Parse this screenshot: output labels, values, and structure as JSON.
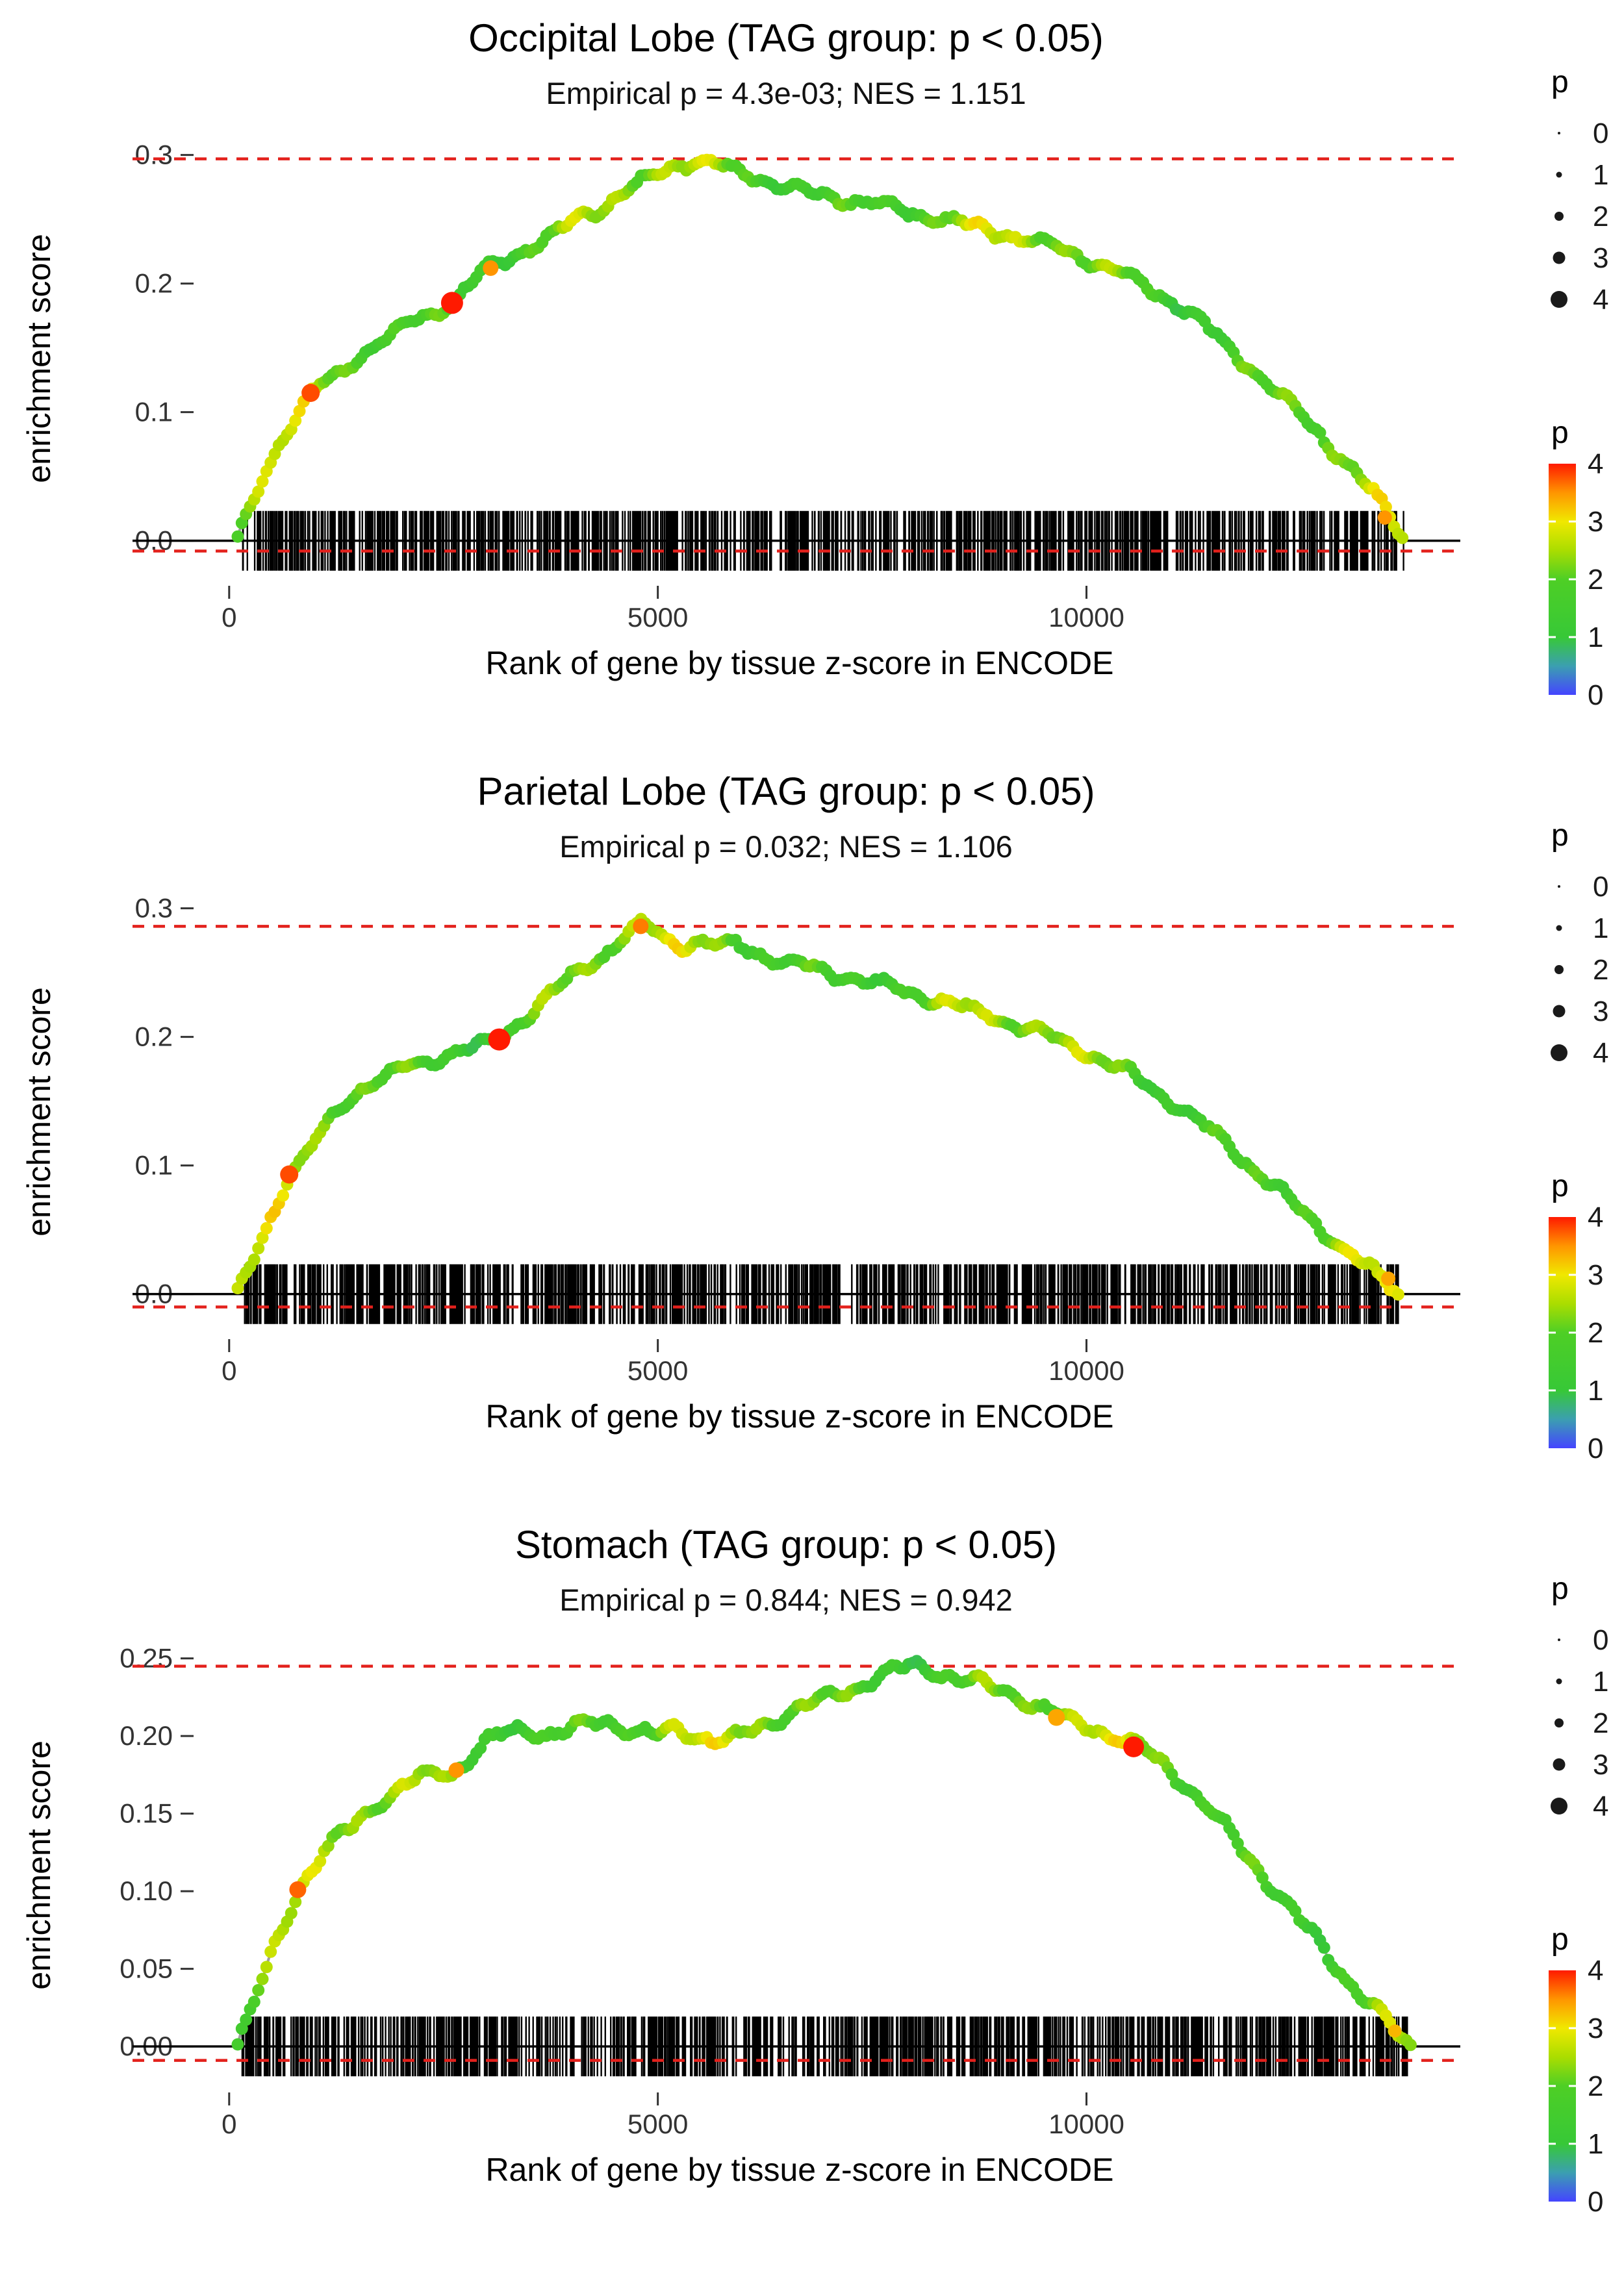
{
  "colors": {
    "dashed_line": "#e3211c",
    "zero_line": "#000000",
    "rug": "#000000",
    "curve_underline": "#9e9e9e",
    "axis_text": "#333333",
    "title_text": "#000000"
  },
  "legends": {
    "size": {
      "title": "p",
      "entries": [
        {
          "label": "0",
          "r": 2
        },
        {
          "label": "1",
          "r": 4.5
        },
        {
          "label": "2",
          "r": 7
        },
        {
          "label": "3",
          "r": 9.5
        },
        {
          "label": "4",
          "r": 13
        }
      ]
    },
    "color": {
      "title": "p",
      "labels": [
        "4",
        "3",
        "2",
        "1",
        "0"
      ],
      "colormap": [
        {
          "p": 0,
          "color": "#4444ff"
        },
        {
          "p": 0.5,
          "color": "#3b9fb0"
        },
        {
          "p": 1,
          "color": "#37c837"
        },
        {
          "p": 2,
          "color": "#4ecf25"
        },
        {
          "p": 2.5,
          "color": "#aadd00"
        },
        {
          "p": 3,
          "color": "#f0e800"
        },
        {
          "p": 3.5,
          "color": "#ff9500"
        },
        {
          "p": 4,
          "color": "#ff1a00"
        }
      ]
    }
  },
  "chart_data": [
    {
      "type": "line",
      "title": "Occipital Lobe (TAG group: p < 0.05)",
      "subtitle": "Empirical p = 4.3e-03; NES = 1.151",
      "xlabel": "Rank of gene by tissue z-score in ENCODE",
      "ylabel": "enrichment score",
      "x_ticks": [
        {
          "v": 0,
          "label": "0"
        },
        {
          "v": 5000,
          "label": "5000"
        },
        {
          "v": 10000,
          "label": "10000"
        }
      ],
      "y_ticks": [
        {
          "v": 0,
          "label": "0.0"
        },
        {
          "v": 0.1,
          "label": "0.1"
        },
        {
          "v": 0.2,
          "label": "0.2"
        },
        {
          "v": 0.3,
          "label": "0.3"
        }
      ],
      "x_domain": [
        -400,
        14300
      ],
      "y_domain": [
        -0.033,
        0.317
      ],
      "max_es": 0.297,
      "min_es": -0.008,
      "n_genes": 13720,
      "rug": {
        "count": 950,
        "seed": 101,
        "xmin": 150,
        "xmax": 13700
      },
      "highlights": [
        {
          "x": 950,
          "es": 0.115,
          "p": 3.8,
          "r": 14
        },
        {
          "x": 2600,
          "es": 0.185,
          "p": 4,
          "r": 17
        },
        {
          "x": 3050,
          "es": 0.212,
          "p": 3.5,
          "r": 12
        },
        {
          "x": 13480,
          "es": 0.018,
          "p": 3.5,
          "r": 11
        }
      ],
      "curve": [
        [
          100,
          0.0
        ],
        [
          250,
          0.025
        ],
        [
          420,
          0.055
        ],
        [
          600,
          0.078
        ],
        [
          800,
          0.098
        ],
        [
          950,
          0.115
        ],
        [
          1100,
          0.122
        ],
        [
          1300,
          0.131
        ],
        [
          1500,
          0.143
        ],
        [
          1700,
          0.152
        ],
        [
          1900,
          0.16
        ],
        [
          2100,
          0.17
        ],
        [
          2300,
          0.176
        ],
        [
          2500,
          0.182
        ],
        [
          2650,
          0.187
        ],
        [
          2800,
          0.198
        ],
        [
          2950,
          0.208
        ],
        [
          3100,
          0.214
        ],
        [
          3300,
          0.222
        ],
        [
          3500,
          0.228
        ],
        [
          3700,
          0.234
        ],
        [
          3900,
          0.243
        ],
        [
          4100,
          0.252
        ],
        [
          4300,
          0.258
        ],
        [
          4500,
          0.266
        ],
        [
          4700,
          0.274
        ],
        [
          4900,
          0.282
        ],
        [
          5100,
          0.289
        ],
        [
          5300,
          0.294
        ],
        [
          5500,
          0.295
        ],
        [
          5700,
          0.291
        ],
        [
          5900,
          0.288
        ],
        [
          6100,
          0.284
        ],
        [
          6300,
          0.28
        ],
        [
          6500,
          0.274
        ],
        [
          6700,
          0.271
        ],
        [
          6900,
          0.269
        ],
        [
          7100,
          0.267
        ],
        [
          7300,
          0.264
        ],
        [
          7500,
          0.262
        ],
        [
          7700,
          0.259
        ],
        [
          7900,
          0.256
        ],
        [
          8100,
          0.253
        ],
        [
          8300,
          0.25
        ],
        [
          8500,
          0.247
        ],
        [
          8700,
          0.244
        ],
        [
          8900,
          0.241
        ],
        [
          9100,
          0.238
        ],
        [
          9300,
          0.234
        ],
        [
          9500,
          0.231
        ],
        [
          9700,
          0.227
        ],
        [
          9900,
          0.222
        ],
        [
          10100,
          0.217
        ],
        [
          10300,
          0.211
        ],
        [
          10500,
          0.205
        ],
        [
          10700,
          0.198
        ],
        [
          10900,
          0.19
        ],
        [
          11100,
          0.182
        ],
        [
          11300,
          0.172
        ],
        [
          11500,
          0.16
        ],
        [
          11700,
          0.148
        ],
        [
          11900,
          0.136
        ],
        [
          12100,
          0.123
        ],
        [
          12300,
          0.11
        ],
        [
          12500,
          0.098
        ],
        [
          12700,
          0.085
        ],
        [
          12900,
          0.07
        ],
        [
          13100,
          0.055
        ],
        [
          13300,
          0.04
        ],
        [
          13500,
          0.024
        ],
        [
          13650,
          0.008
        ],
        [
          13720,
          0.0
        ]
      ]
    },
    {
      "type": "line",
      "title": "Parietal Lobe (TAG group: p < 0.05)",
      "subtitle": "Empirical p = 0.032; NES = 1.106",
      "xlabel": "Rank of gene by tissue z-score in ENCODE",
      "ylabel": "enrichment score",
      "x_ticks": [
        {
          "v": 0,
          "label": "0"
        },
        {
          "v": 5000,
          "label": "5000"
        },
        {
          "v": 10000,
          "label": "10000"
        }
      ],
      "y_ticks": [
        {
          "v": 0,
          "label": "0.0"
        },
        {
          "v": 0.1,
          "label": "0.1"
        },
        {
          "v": 0.2,
          "label": "0.2"
        },
        {
          "v": 0.3,
          "label": "0.3"
        }
      ],
      "x_domain": [
        -400,
        14300
      ],
      "y_domain": [
        -0.033,
        0.317
      ],
      "max_es": 0.286,
      "min_es": -0.01,
      "n_genes": 13650,
      "rug": {
        "count": 950,
        "seed": 202,
        "xmin": 150,
        "xmax": 13650
      },
      "highlights": [
        {
          "x": 700,
          "es": 0.093,
          "p": 3.8,
          "r": 14
        },
        {
          "x": 3150,
          "es": 0.198,
          "p": 4,
          "r": 17
        },
        {
          "x": 4800,
          "es": 0.286,
          "p": 3.6,
          "r": 12
        },
        {
          "x": 13520,
          "es": 0.012,
          "p": 3.4,
          "r": 11
        }
      ],
      "curve": [
        [
          100,
          0.0
        ],
        [
          300,
          0.03
        ],
        [
          500,
          0.062
        ],
        [
          700,
          0.093
        ],
        [
          850,
          0.105
        ],
        [
          1000,
          0.118
        ],
        [
          1200,
          0.137
        ],
        [
          1400,
          0.152
        ],
        [
          1550,
          0.16
        ],
        [
          1700,
          0.166
        ],
        [
          2000,
          0.174
        ],
        [
          2300,
          0.181
        ],
        [
          2600,
          0.188
        ],
        [
          2900,
          0.192
        ],
        [
          3150,
          0.198
        ],
        [
          3400,
          0.212
        ],
        [
          3600,
          0.225
        ],
        [
          3800,
          0.236
        ],
        [
          4000,
          0.247
        ],
        [
          4200,
          0.256
        ],
        [
          4400,
          0.266
        ],
        [
          4600,
          0.277
        ],
        [
          4800,
          0.286
        ],
        [
          4950,
          0.282
        ],
        [
          5100,
          0.276
        ],
        [
          5300,
          0.272
        ],
        [
          5500,
          0.274
        ],
        [
          5700,
          0.27
        ],
        [
          5900,
          0.272
        ],
        [
          6100,
          0.267
        ],
        [
          6300,
          0.263
        ],
        [
          6500,
          0.258
        ],
        [
          6700,
          0.255
        ],
        [
          6900,
          0.251
        ],
        [
          7100,
          0.248
        ],
        [
          7300,
          0.245
        ],
        [
          7500,
          0.242
        ],
        [
          7700,
          0.239
        ],
        [
          7900,
          0.235
        ],
        [
          8100,
          0.231
        ],
        [
          8300,
          0.228
        ],
        [
          8500,
          0.224
        ],
        [
          8700,
          0.22
        ],
        [
          8900,
          0.216
        ],
        [
          9100,
          0.212
        ],
        [
          9300,
          0.207
        ],
        [
          9500,
          0.202
        ],
        [
          9700,
          0.197
        ],
        [
          9900,
          0.191
        ],
        [
          10100,
          0.185
        ],
        [
          10300,
          0.178
        ],
        [
          10500,
          0.171
        ],
        [
          10700,
          0.163
        ],
        [
          10900,
          0.154
        ],
        [
          11100,
          0.145
        ],
        [
          11300,
          0.135
        ],
        [
          11500,
          0.124
        ],
        [
          11700,
          0.113
        ],
        [
          11900,
          0.101
        ],
        [
          12100,
          0.089
        ],
        [
          12300,
          0.077
        ],
        [
          12500,
          0.065
        ],
        [
          12700,
          0.053
        ],
        [
          12900,
          0.041
        ],
        [
          13100,
          0.03
        ],
        [
          13300,
          0.019
        ],
        [
          13500,
          0.008
        ],
        [
          13650,
          0.0
        ]
      ]
    },
    {
      "type": "line",
      "title": "Stomach (TAG group: p < 0.05)",
      "subtitle": "Empirical p = 0.844; NES = 0.942",
      "xlabel": "Rank of gene by tissue z-score in ENCODE",
      "ylabel": "enrichment score",
      "x_ticks": [
        {
          "v": 0,
          "label": "0"
        },
        {
          "v": 5000,
          "label": "5000"
        },
        {
          "v": 10000,
          "label": "10000"
        }
      ],
      "y_ticks": [
        {
          "v": 0,
          "label": "0.00"
        },
        {
          "v": 0.05,
          "label": "0.05"
        },
        {
          "v": 0.1,
          "label": "0.10"
        },
        {
          "v": 0.15,
          "label": "0.15"
        },
        {
          "v": 0.2,
          "label": "0.20"
        },
        {
          "v": 0.25,
          "label": "0.25"
        }
      ],
      "x_domain": [
        -400,
        14300
      ],
      "y_domain": [
        -0.028,
        0.262
      ],
      "max_es": 0.245,
      "min_es": -0.009,
      "n_genes": 13780,
      "rug": {
        "count": 950,
        "seed": 303,
        "xmin": 150,
        "xmax": 13750
      },
      "highlights": [
        {
          "x": 800,
          "es": 0.101,
          "p": 3.7,
          "r": 13
        },
        {
          "x": 2650,
          "es": 0.178,
          "p": 3.5,
          "r": 12
        },
        {
          "x": 9650,
          "es": 0.212,
          "p": 3.4,
          "r": 13
        },
        {
          "x": 10550,
          "es": 0.193,
          "p": 4,
          "r": 16
        },
        {
          "x": 13600,
          "es": 0.01,
          "p": 3.3,
          "r": 10
        }
      ],
      "curve": [
        [
          100,
          0.0
        ],
        [
          300,
          0.028
        ],
        [
          500,
          0.06
        ],
        [
          650,
          0.082
        ],
        [
          800,
          0.101
        ],
        [
          950,
          0.112
        ],
        [
          1100,
          0.124
        ],
        [
          1300,
          0.135
        ],
        [
          1500,
          0.146
        ],
        [
          1700,
          0.156
        ],
        [
          1900,
          0.162
        ],
        [
          2100,
          0.169
        ],
        [
          2300,
          0.174
        ],
        [
          2500,
          0.177
        ],
        [
          2650,
          0.178
        ],
        [
          2800,
          0.186
        ],
        [
          2950,
          0.193
        ],
        [
          3100,
          0.198
        ],
        [
          3250,
          0.202
        ],
        [
          3400,
          0.205
        ],
        [
          3600,
          0.203
        ],
        [
          3800,
          0.201
        ],
        [
          4000,
          0.204
        ],
        [
          4200,
          0.208
        ],
        [
          4400,
          0.21
        ],
        [
          4600,
          0.206
        ],
        [
          4800,
          0.202
        ],
        [
          5000,
          0.2
        ],
        [
          5200,
          0.204
        ],
        [
          5400,
          0.202
        ],
        [
          5600,
          0.199
        ],
        [
          5800,
          0.196
        ],
        [
          6000,
          0.2
        ],
        [
          6200,
          0.206
        ],
        [
          6400,
          0.212
        ],
        [
          6600,
          0.217
        ],
        [
          6800,
          0.221
        ],
        [
          7000,
          0.225
        ],
        [
          7200,
          0.229
        ],
        [
          7400,
          0.234
        ],
        [
          7600,
          0.239
        ],
        [
          7800,
          0.242
        ],
        [
          8000,
          0.245
        ],
        [
          8200,
          0.243
        ],
        [
          8400,
          0.239
        ],
        [
          8600,
          0.236
        ],
        [
          8800,
          0.232
        ],
        [
          9000,
          0.229
        ],
        [
          9200,
          0.226
        ],
        [
          9400,
          0.22
        ],
        [
          9600,
          0.215
        ],
        [
          9800,
          0.21
        ],
        [
          10000,
          0.207
        ],
        [
          10200,
          0.203
        ],
        [
          10400,
          0.198
        ],
        [
          10550,
          0.194
        ],
        [
          10700,
          0.189
        ],
        [
          10900,
          0.182
        ],
        [
          11100,
          0.172
        ],
        [
          11300,
          0.16
        ],
        [
          11500,
          0.148
        ],
        [
          11700,
          0.135
        ],
        [
          11900,
          0.121
        ],
        [
          12100,
          0.108
        ],
        [
          12300,
          0.094
        ],
        [
          12500,
          0.08
        ],
        [
          12700,
          0.067
        ],
        [
          12900,
          0.053
        ],
        [
          13100,
          0.04
        ],
        [
          13300,
          0.027
        ],
        [
          13500,
          0.015
        ],
        [
          13700,
          0.003
        ],
        [
          13780,
          0.0
        ]
      ]
    }
  ]
}
